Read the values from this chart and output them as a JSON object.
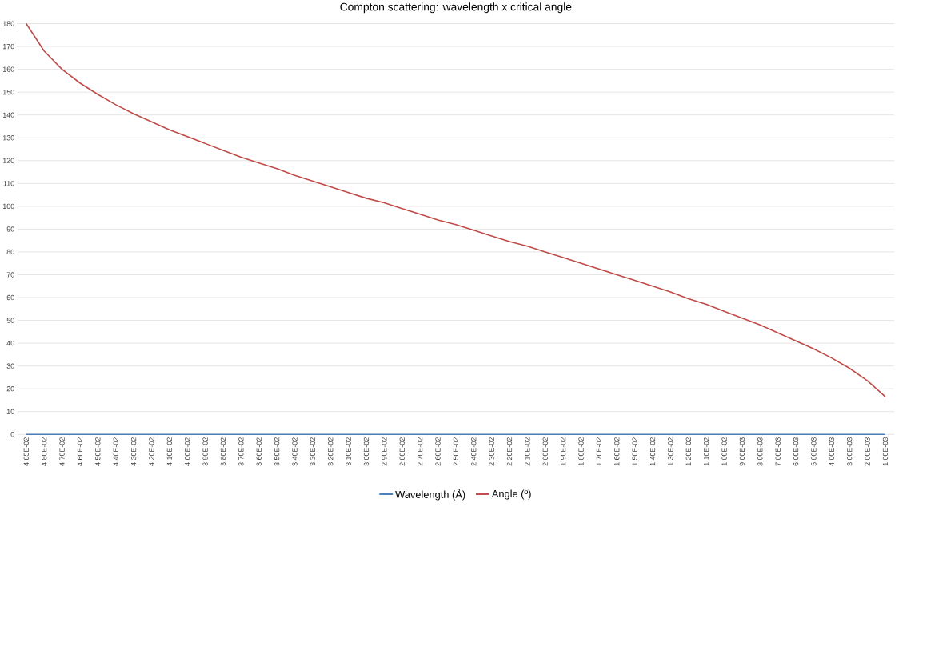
{
  "chart_data": {
    "type": "line",
    "title": "Compton scattering: wavelength x critical angle",
    "categories": [
      "4.85E-02",
      "4.80E-02",
      "4.70E-02",
      "4.60E-02",
      "4.50E-02",
      "4.40E-02",
      "4.30E-02",
      "4.20E-02",
      "4.10E-02",
      "4.00E-02",
      "3.90E-02",
      "3.80E-02",
      "3.70E-02",
      "3.60E-02",
      "3.50E-02",
      "3.40E-02",
      "3.30E-02",
      "3.20E-02",
      "3.10E-02",
      "3.00E-02",
      "2.90E-02",
      "2.80E-02",
      "2.70E-02",
      "2.60E-02",
      "2.50E-02",
      "2.40E-02",
      "2.30E-02",
      "2.20E-02",
      "2.10E-02",
      "2.00E-02",
      "1.90E-02",
      "1.80E-02",
      "1.70E-02",
      "1.60E-02",
      "1.50E-02",
      "1.40E-02",
      "1.30E-02",
      "1.20E-02",
      "1.10E-02",
      "1.00E-02",
      "9.00E-03",
      "8.00E-03",
      "7.00E-03",
      "6.00E-03",
      "5.00E-03",
      "4.00E-03",
      "3.00E-03",
      "2.00E-03",
      "1.00E-03"
    ],
    "series": [
      {
        "name": "Wavelength (Å)",
        "color": "#4a7ebb",
        "values": [
          0,
          0,
          0,
          0,
          0,
          0,
          0,
          0,
          0,
          0,
          0,
          0,
          0,
          0,
          0,
          0,
          0,
          0,
          0,
          0,
          0,
          0,
          0,
          0,
          0,
          0,
          0,
          0,
          0,
          0,
          0,
          0,
          0,
          0,
          0,
          0,
          0,
          0,
          0,
          0,
          0,
          0,
          0,
          0,
          0,
          0,
          0,
          0,
          0
        ]
      },
      {
        "name": "Angle (º)",
        "color": "#be4b48",
        "values": [
          180,
          168,
          160,
          154,
          149,
          144.5,
          140.5,
          137,
          133.5,
          130.5,
          127.5,
          124.5,
          121.5,
          119,
          116.5,
          113.5,
          111,
          108.5,
          106,
          103.5,
          101.5,
          99,
          96.5,
          94,
          92,
          89.5,
          87,
          84.5,
          82.5,
          80,
          77.5,
          75,
          72.5,
          70,
          67.5,
          65,
          62.5,
          59.5,
          57,
          54,
          51,
          48,
          44.5,
          41,
          37.5,
          33.5,
          29,
          23.5,
          16.5
        ]
      }
    ],
    "ylim": [
      0,
      180
    ],
    "yticks": [
      0,
      10,
      20,
      30,
      40,
      50,
      60,
      70,
      80,
      90,
      100,
      110,
      120,
      130,
      140,
      150,
      160,
      170,
      180
    ],
    "grid": "y",
    "legend": "bottom",
    "marker": "none",
    "line_style": "solid"
  }
}
